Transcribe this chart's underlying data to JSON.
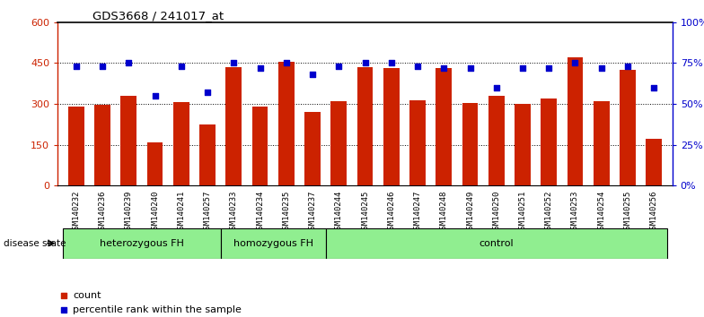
{
  "title": "GDS3668 / 241017_at",
  "samples": [
    "GSM140232",
    "GSM140236",
    "GSM140239",
    "GSM140240",
    "GSM140241",
    "GSM140257",
    "GSM140233",
    "GSM140234",
    "GSM140235",
    "GSM140237",
    "GSM140244",
    "GSM140245",
    "GSM140246",
    "GSM140247",
    "GSM140248",
    "GSM140249",
    "GSM140250",
    "GSM140251",
    "GSM140252",
    "GSM140253",
    "GSM140254",
    "GSM140255",
    "GSM140256"
  ],
  "counts": [
    290,
    295,
    330,
    158,
    308,
    225,
    435,
    290,
    455,
    270,
    310,
    435,
    430,
    312,
    430,
    302,
    330,
    300,
    318,
    470,
    310,
    425,
    170
  ],
  "percentiles": [
    73,
    73,
    75,
    55,
    73,
    57,
    75,
    72,
    75,
    68,
    73,
    75,
    75,
    73,
    72,
    72,
    60,
    72,
    72,
    75,
    72,
    73,
    60
  ],
  "bar_color": "#CC2200",
  "dot_color": "#0000CC",
  "ylim_left": [
    0,
    600
  ],
  "ylim_right": [
    0,
    100
  ],
  "yticks_left": [
    0,
    150,
    300,
    450,
    600
  ],
  "yticks_right": [
    0,
    25,
    50,
    75,
    100
  ],
  "ytick_labels_left": [
    "0",
    "150",
    "300",
    "450",
    "600"
  ],
  "ytick_labels_right": [
    "0%",
    "25%",
    "50%",
    "75%",
    "100%"
  ],
  "legend_count_label": "count",
  "legend_percentile_label": "percentile rank within the sample",
  "disease_state_label": "disease state",
  "group_labels": [
    "heterozygous FH",
    "homozygous FH",
    "control"
  ],
  "group_ends": [
    6,
    10,
    23
  ],
  "group_color": "#90EE90",
  "xtick_bg": "#D0D0D0",
  "chart_bg": "#FFFFFF",
  "grid_color": "#000000",
  "border_color": "#808080"
}
